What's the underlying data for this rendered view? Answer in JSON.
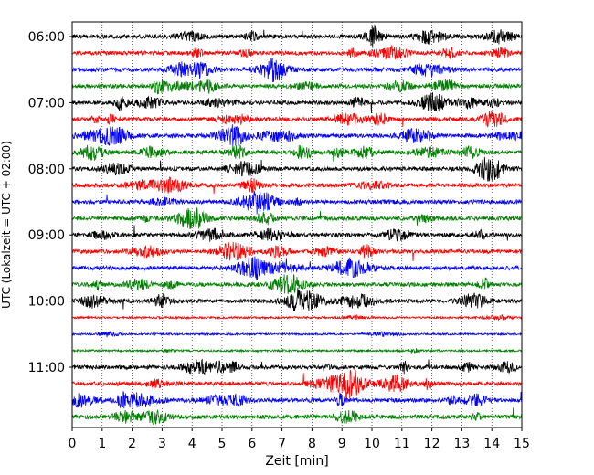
{
  "chart_data": {
    "type": "line",
    "title": "",
    "xlabel": "Zeit  [min]",
    "ylabel": "UTC (Lokalzeit = UTC + 02:00)",
    "xlim": [
      0,
      15
    ],
    "x_ticks": [
      "0",
      "1",
      "2",
      "3",
      "4",
      "5",
      "6",
      "7",
      "8",
      "9",
      "10",
      "11",
      "12",
      "13",
      "14",
      "15"
    ],
    "y_tick_labels": [
      "06:00",
      "07:00",
      "08:00",
      "09:00",
      "10:00",
      "11:00"
    ],
    "grid": "vertical dotted",
    "trace_interval_minutes": 15,
    "colors": [
      "#000000",
      "#ff0000",
      "#0000ff",
      "#008000"
    ],
    "traces": [
      {
        "start": "06:00",
        "color": "#000000"
      },
      {
        "start": "06:15",
        "color": "#ff0000"
      },
      {
        "start": "06:30",
        "color": "#0000ff"
      },
      {
        "start": "06:45",
        "color": "#008000"
      },
      {
        "start": "07:00",
        "color": "#000000"
      },
      {
        "start": "07:15",
        "color": "#ff0000"
      },
      {
        "start": "07:30",
        "color": "#0000ff"
      },
      {
        "start": "07:45",
        "color": "#008000"
      },
      {
        "start": "08:00",
        "color": "#000000"
      },
      {
        "start": "08:15",
        "color": "#ff0000"
      },
      {
        "start": "08:30",
        "color": "#0000ff"
      },
      {
        "start": "08:45",
        "color": "#008000"
      },
      {
        "start": "09:00",
        "color": "#000000"
      },
      {
        "start": "09:15",
        "color": "#ff0000"
      },
      {
        "start": "09:30",
        "color": "#0000ff"
      },
      {
        "start": "09:45",
        "color": "#008000"
      },
      {
        "start": "10:00",
        "color": "#000000"
      },
      {
        "start": "10:15",
        "color": "#ff0000"
      },
      {
        "start": "10:30",
        "color": "#0000ff"
      },
      {
        "start": "10:45",
        "color": "#008000"
      },
      {
        "start": "11:00",
        "color": "#000000"
      },
      {
        "start": "11:15",
        "color": "#ff0000"
      },
      {
        "start": "11:30",
        "color": "#0000ff"
      },
      {
        "start": "11:45",
        "color": "#008000"
      }
    ]
  }
}
